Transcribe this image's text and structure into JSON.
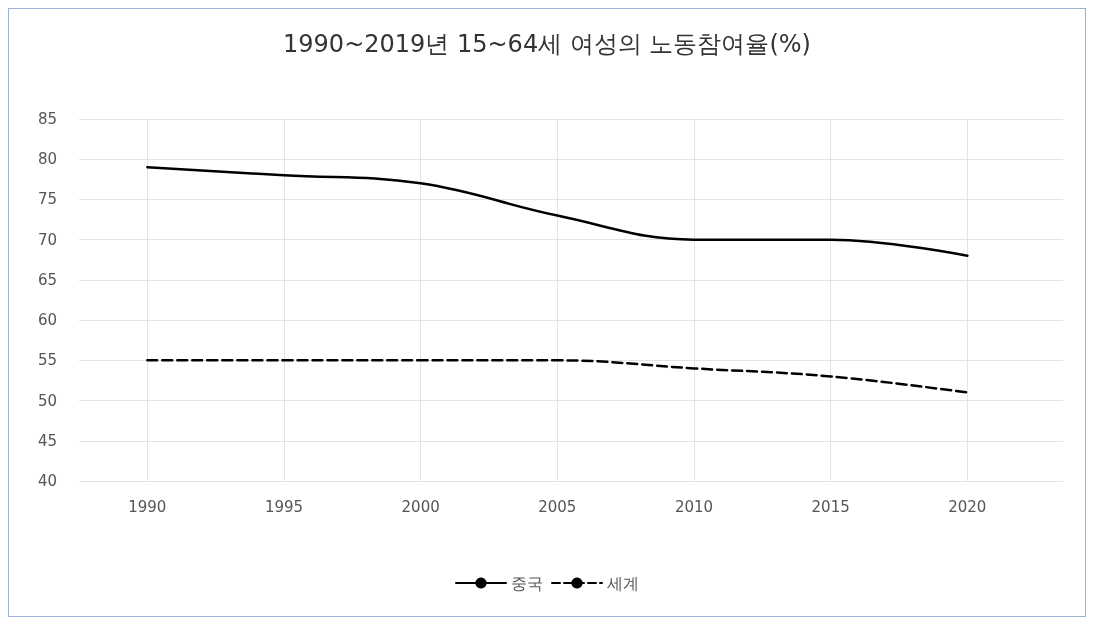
{
  "chart_data": {
    "type": "line",
    "title": "1990~2019년 15~64세 여성의 노동참여율(%)",
    "x": [
      1990,
      1995,
      2000,
      2005,
      2010,
      2015,
      2020
    ],
    "series": [
      {
        "name": "중국",
        "color": "#000000",
        "line_style": "solid",
        "values": [
          79,
          78,
          77,
          73,
          70,
          70,
          68
        ]
      },
      {
        "name": "세계",
        "color": "#000000",
        "line_style": "dashed",
        "values": [
          55,
          55,
          55,
          55,
          54,
          53,
          51
        ]
      }
    ],
    "xlim": [
      1987.5,
      2023.5
    ],
    "xticks": [
      1990,
      1995,
      2000,
      2005,
      2010,
      2015,
      2020
    ],
    "ylim": [
      40,
      85
    ],
    "yticks": [
      40,
      45,
      50,
      55,
      60,
      65,
      70,
      75,
      80,
      85
    ],
    "grid": true,
    "legend": "bottom",
    "marker": "none"
  }
}
